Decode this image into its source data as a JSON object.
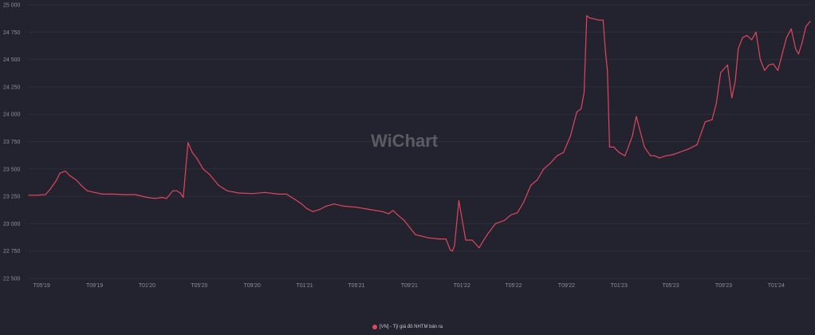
{
  "chart_data": {
    "type": "line",
    "title": "",
    "xlabel": "",
    "ylabel": "",
    "ylim": [
      22500,
      25000
    ],
    "y_ticks": [
      22500,
      22750,
      23000,
      23250,
      23500,
      23750,
      24000,
      24250,
      24500,
      24750,
      25000
    ],
    "y_tick_labels": [
      "22 500",
      "22 750",
      "23 000",
      "23 250",
      "23 500",
      "23 750",
      "24 000",
      "24 250",
      "24 500",
      "24 750",
      "25 000"
    ],
    "x_ticks": [
      "2019-05-01",
      "2019-09-01",
      "2020-01-01",
      "2020-05-01",
      "2020-09-01",
      "2021-01-01",
      "2021-05-01",
      "2021-09-01",
      "2022-01-01",
      "2022-05-01",
      "2022-09-01",
      "2023-01-01",
      "2023-05-01",
      "2023-09-01",
      "2024-01-01"
    ],
    "x_tick_labels": [
      "T05'19",
      "T09'19",
      "T01'20",
      "T05'20",
      "T09'20",
      "T01'21",
      "T05'21",
      "T09'21",
      "T01'22",
      "T05'22",
      "T09'22",
      "T01'23",
      "T05'23",
      "T09'23",
      "T01'24"
    ],
    "grid": "horizontal",
    "legend_position": "bottom",
    "watermark": "WiChart",
    "colors": {
      "series": "#e0465e",
      "background": "#22232e"
    },
    "series": [
      {
        "name": "[VN] - Tỷ giá đô NHTM bán ra",
        "x": [
          "2019-04-01",
          "2019-04-20",
          "2019-05-10",
          "2019-05-22",
          "2019-06-05",
          "2019-06-12",
          "2019-06-25",
          "2019-07-05",
          "2019-07-20",
          "2019-08-01",
          "2019-08-15",
          "2019-09-01",
          "2019-09-20",
          "2019-10-15",
          "2019-11-10",
          "2019-12-05",
          "2020-01-01",
          "2020-01-20",
          "2020-02-05",
          "2020-02-15",
          "2020-03-01",
          "2020-03-10",
          "2020-03-18",
          "2020-03-25",
          "2020-04-05",
          "2020-04-15",
          "2020-04-25",
          "2020-05-10",
          "2020-05-25",
          "2020-06-15",
          "2020-07-05",
          "2020-08-01",
          "2020-09-01",
          "2020-10-01",
          "2020-11-01",
          "2020-11-20",
          "2020-12-10",
          "2020-12-25",
          "2021-01-05",
          "2021-01-20",
          "2021-02-05",
          "2021-02-20",
          "2021-03-10",
          "2021-04-01",
          "2021-05-01",
          "2021-06-01",
          "2021-07-01",
          "2021-07-15",
          "2021-07-25",
          "2021-08-05",
          "2021-08-20",
          "2021-09-15",
          "2021-10-15",
          "2021-11-10",
          "2021-11-25",
          "2021-12-05",
          "2021-12-10",
          "2021-12-15",
          "2021-12-25",
          "2022-01-10",
          "2022-01-25",
          "2022-02-10",
          "2022-03-01",
          "2022-03-20",
          "2022-04-10",
          "2022-04-25",
          "2022-05-10",
          "2022-05-25",
          "2022-06-10",
          "2022-06-25",
          "2022-07-10",
          "2022-07-25",
          "2022-08-10",
          "2022-08-25",
          "2022-09-10",
          "2022-09-25",
          "2022-10-05",
          "2022-10-12",
          "2022-10-18",
          "2022-10-25",
          "2022-11-05",
          "2022-11-15",
          "2022-11-25",
          "2022-12-01",
          "2022-12-05",
          "2022-12-10",
          "2022-12-20",
          "2023-01-01",
          "2023-01-15",
          "2023-02-01",
          "2023-02-10",
          "2023-02-20",
          "2023-03-01",
          "2023-03-15",
          "2023-03-25",
          "2023-04-05",
          "2023-04-20",
          "2023-05-05",
          "2023-05-20",
          "2023-06-10",
          "2023-07-01",
          "2023-07-20",
          "2023-08-05",
          "2023-08-15",
          "2023-08-25",
          "2023-09-10",
          "2023-09-20",
          "2023-09-28",
          "2023-10-05",
          "2023-10-15",
          "2023-10-25",
          "2023-11-05",
          "2023-11-15",
          "2023-11-25",
          "2023-12-05",
          "2023-12-15",
          "2023-12-25",
          "2024-01-05",
          "2024-01-15",
          "2024-01-25",
          "2024-02-05",
          "2024-02-15",
          "2024-02-22",
          "2024-03-01",
          "2024-03-10",
          "2024-03-20"
        ],
        "values": [
          23260,
          23260,
          23265,
          23320,
          23400,
          23460,
          23480,
          23440,
          23400,
          23350,
          23300,
          23285,
          23270,
          23270,
          23265,
          23265,
          23240,
          23230,
          23240,
          23230,
          23300,
          23300,
          23280,
          23240,
          23740,
          23650,
          23600,
          23500,
          23450,
          23350,
          23300,
          23280,
          23275,
          23285,
          23270,
          23270,
          23220,
          23180,
          23140,
          23110,
          23130,
          23160,
          23180,
          23160,
          23150,
          23130,
          23110,
          23090,
          23120,
          23080,
          23030,
          22900,
          22870,
          22860,
          22860,
          22760,
          22750,
          22800,
          23210,
          22850,
          22850,
          22780,
          22900,
          23000,
          23030,
          23080,
          23100,
          23200,
          23350,
          23400,
          23500,
          23550,
          23620,
          23650,
          23800,
          24020,
          24050,
          24200,
          24900,
          24880,
          24870,
          24860,
          24860,
          24550,
          24400,
          23700,
          23700,
          23650,
          23620,
          23800,
          23980,
          23830,
          23700,
          23620,
          23620,
          23600,
          23620,
          23630,
          23650,
          23680,
          23720,
          23930,
          23950,
          24100,
          24380,
          24450,
          24150,
          24300,
          24600,
          24700,
          24720,
          24680,
          24750,
          24500,
          24400,
          24450,
          24460,
          24400,
          24550,
          24700,
          24780,
          24600,
          24550,
          24650,
          24800,
          24850
        ]
      }
    ]
  }
}
